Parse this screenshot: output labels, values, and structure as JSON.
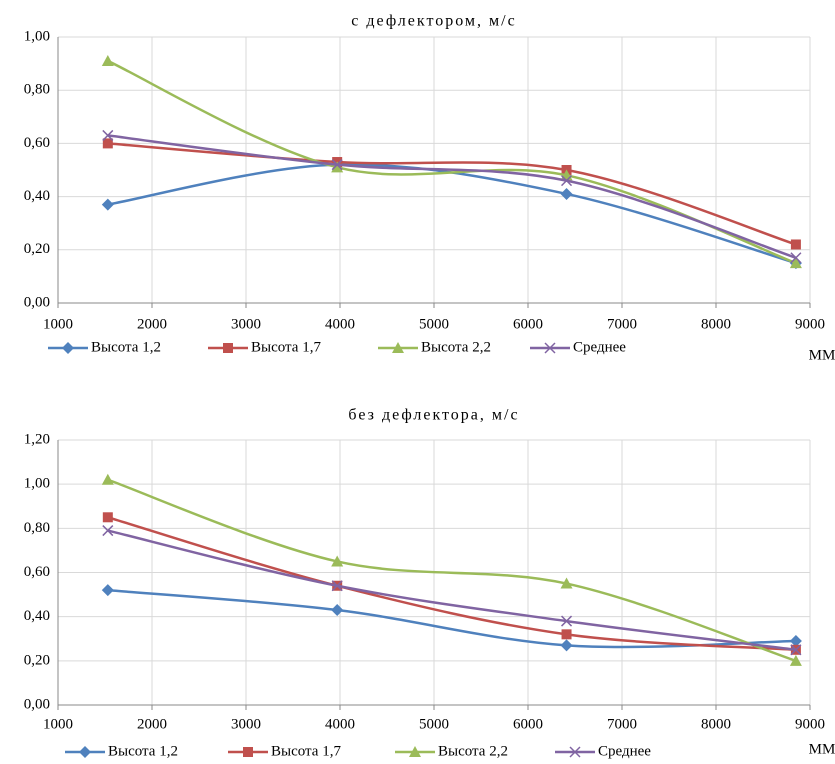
{
  "chart_data": [
    {
      "type": "line",
      "title": "с дефлектором, м/с",
      "x_label": "ММ",
      "grid": true,
      "x": [
        1530,
        3970,
        6410,
        8850
      ],
      "xlim": [
        1000,
        9000
      ],
      "xticks": [
        1000,
        2000,
        3000,
        4000,
        5000,
        6000,
        7000,
        8000,
        9000
      ],
      "ylim": [
        0,
        1
      ],
      "yticks": [
        {
          "value": 0,
          "label": "0,00"
        },
        {
          "value": 0.2,
          "label": "0,20"
        },
        {
          "value": 0.4,
          "label": "0,40"
        },
        {
          "value": 0.6,
          "label": "0,60"
        },
        {
          "value": 0.8,
          "label": "0,80"
        },
        {
          "value": 1,
          "label": "1,00"
        }
      ],
      "series": [
        {
          "name": "Высота 1,2",
          "color": "#4f81bd",
          "marker": "diamond",
          "values": [
            0.37,
            0.52,
            0.41,
            0.15
          ]
        },
        {
          "name": "Высота 1,7",
          "color": "#c0504d",
          "marker": "square",
          "values": [
            0.6,
            0.53,
            0.5,
            0.22
          ]
        },
        {
          "name": "Высота 2,2",
          "color": "#9bbb59",
          "marker": "triangle",
          "values": [
            0.91,
            0.51,
            0.48,
            0.15
          ]
        },
        {
          "name": "Среднее",
          "color": "#8064a2",
          "marker": "x",
          "values": [
            0.63,
            0.52,
            0.46,
            0.17
          ]
        }
      ]
    },
    {
      "type": "line",
      "title": "без дефлектора, м/с",
      "x_label": "ММ",
      "grid": true,
      "x": [
        1530,
        3970,
        6410,
        8850
      ],
      "xlim": [
        1000,
        9000
      ],
      "xticks": [
        1000,
        2000,
        3000,
        4000,
        5000,
        6000,
        7000,
        8000,
        9000
      ],
      "ylim": [
        0,
        1.2
      ],
      "yticks": [
        {
          "value": 0,
          "label": "0,00"
        },
        {
          "value": 0.2,
          "label": "0,20"
        },
        {
          "value": 0.4,
          "label": "0,40"
        },
        {
          "value": 0.6,
          "label": "0,60"
        },
        {
          "value": 0.8,
          "label": "0,80"
        },
        {
          "value": 1,
          "label": "1,00"
        },
        {
          "value": 1.2,
          "label": "1,20"
        }
      ],
      "series": [
        {
          "name": "Высота 1,2",
          "color": "#4f81bd",
          "marker": "diamond",
          "values": [
            0.52,
            0.43,
            0.27,
            0.29
          ]
        },
        {
          "name": "Высота 1,7",
          "color": "#c0504d",
          "marker": "square",
          "values": [
            0.85,
            0.54,
            0.32,
            0.25
          ]
        },
        {
          "name": "Высота 2,2",
          "color": "#9bbb59",
          "marker": "triangle",
          "values": [
            1.02,
            0.65,
            0.55,
            0.2
          ]
        },
        {
          "name": "Среднее",
          "color": "#8064a2",
          "marker": "x",
          "values": [
            0.79,
            0.54,
            0.38,
            0.25
          ]
        }
      ]
    }
  ]
}
